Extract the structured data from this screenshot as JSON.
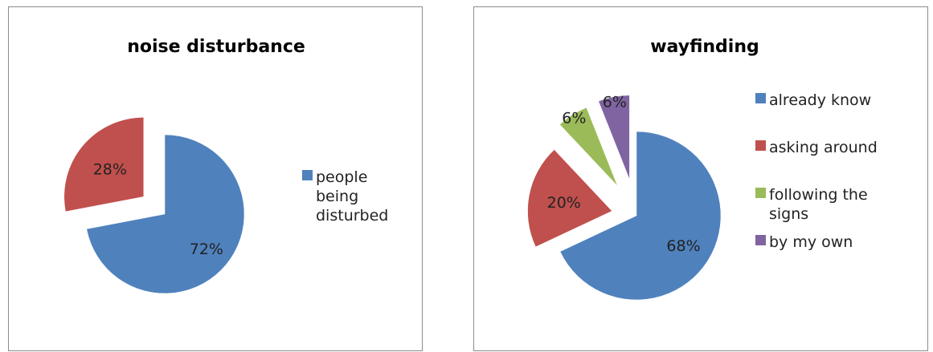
{
  "chart_data": [
    {
      "type": "pie",
      "title": "noise disturbance",
      "categories": [
        "people being disturbed",
        ""
      ],
      "values": [
        72,
        28
      ],
      "data_labels": [
        "72%",
        "28%"
      ],
      "colors": [
        "#4f81bd",
        "#c0504d"
      ],
      "legend": {
        "placement": "right",
        "entries": [
          {
            "lines": [
              "people",
              "being",
              "disturbed"
            ],
            "color": "#4f81bd"
          }
        ]
      }
    },
    {
      "type": "pie",
      "title": "wayfinding",
      "categories": [
        "already know",
        "asking around",
        "following the signs",
        "by my own"
      ],
      "values": [
        68,
        20,
        6,
        6
      ],
      "data_labels": [
        "68%",
        "20%",
        "6%",
        "6%"
      ],
      "colors": [
        "#4f81bd",
        "#c0504d",
        "#9bbb59",
        "#8064a2"
      ],
      "legend": {
        "placement": "right",
        "entries": [
          {
            "lines": [
              "already know"
            ],
            "color": "#4f81bd"
          },
          {
            "lines": [
              "asking around"
            ],
            "color": "#c0504d"
          },
          {
            "lines": [
              "following the",
              "signs"
            ],
            "color": "#9bbb59"
          },
          {
            "lines": [
              "by my own"
            ],
            "color": "#8064a2"
          }
        ]
      }
    }
  ]
}
